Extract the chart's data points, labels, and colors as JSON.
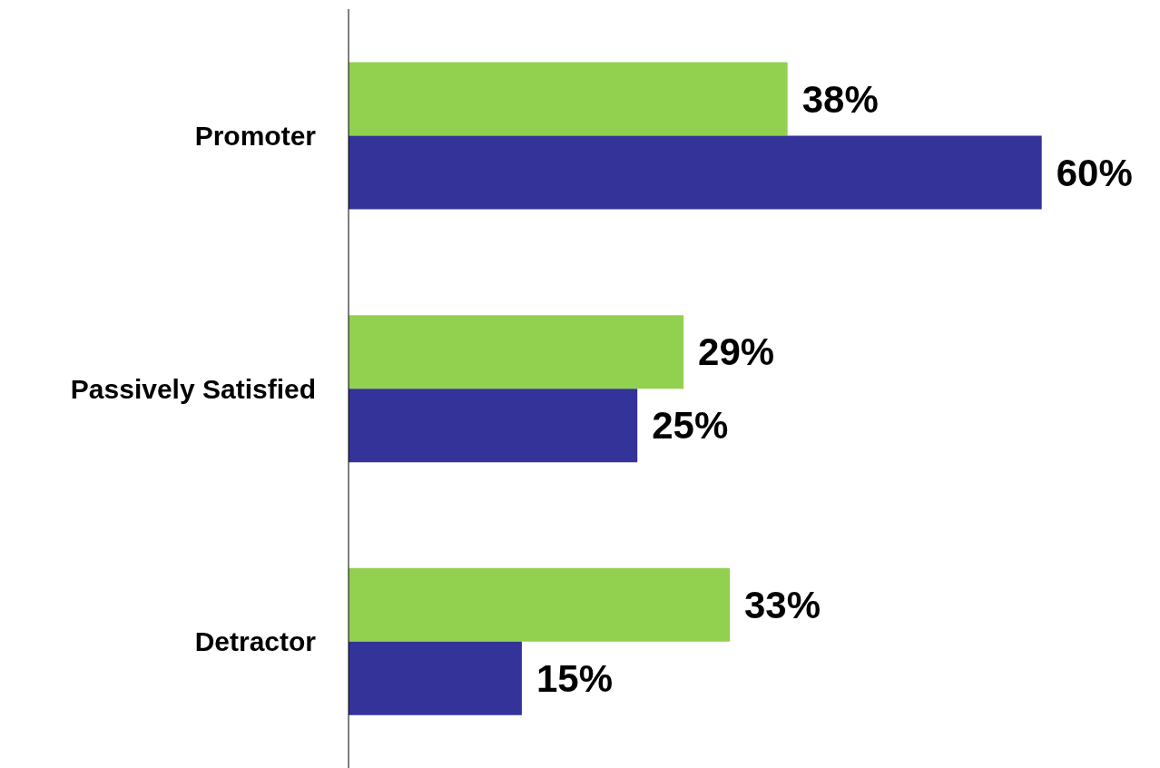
{
  "chart_data": {
    "type": "bar",
    "orientation": "horizontal",
    "categories": [
      "Promoter",
      "Passively Satisfied",
      "Detractor"
    ],
    "series": [
      {
        "color": "#92d050",
        "values": [
          38,
          29,
          33
        ],
        "value_labels": [
          "38%",
          "29%",
          "33%"
        ]
      },
      {
        "color": "#333399",
        "values": [
          60,
          25,
          15
        ],
        "value_labels": [
          "60%",
          "25%",
          "15%"
        ]
      }
    ],
    "tick_labels": "y"
  }
}
